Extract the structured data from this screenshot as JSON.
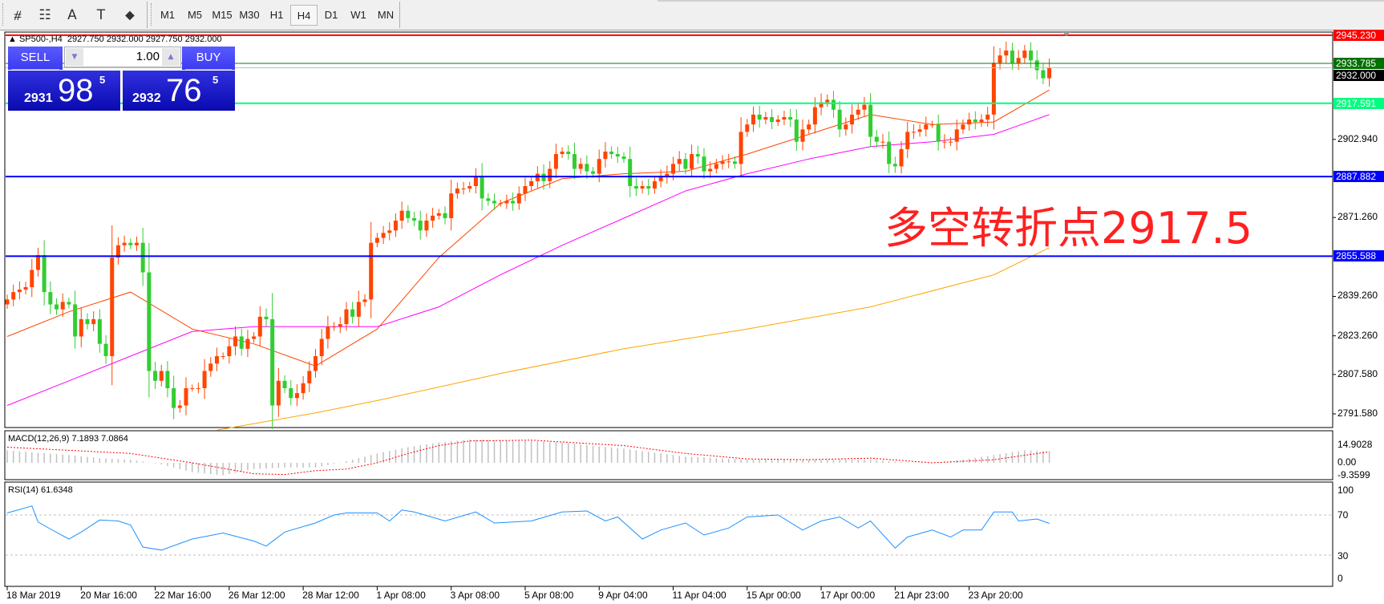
{
  "toolbar": {
    "tools": [
      {
        "name": "equidistant-channel-icon",
        "glyph": "⧣"
      },
      {
        "name": "fibonacci-icon",
        "glyph": "☷"
      },
      {
        "name": "text-icon",
        "glyph": "A"
      },
      {
        "name": "text-label-icon",
        "glyph": "T"
      },
      {
        "name": "arrows-icon",
        "glyph": "⬥"
      }
    ],
    "timeframes": [
      "M1",
      "M5",
      "M15",
      "M30",
      "H1",
      "H4",
      "D1",
      "W1",
      "MN"
    ],
    "selected_timeframe": "H4"
  },
  "chart_header": {
    "symbol": "SP500-,H4",
    "ohlc": "2927.750 2932.000 2927.750 2932.000"
  },
  "trade_panel": {
    "sell_label": "SELL",
    "buy_label": "BUY",
    "lot": "1.00",
    "sell_price": {
      "big_prefix": "2931",
      "main": "98",
      "sup": "5"
    },
    "buy_price": {
      "big_prefix": "2932",
      "main": "76",
      "sup": "5"
    }
  },
  "annotation": "多空转折点2917.5",
  "chart_data": {
    "type": "candlestick",
    "colors": {
      "up": "#ff4500",
      "down": "#32cd32",
      "ma_fast": "#ff4500",
      "ma_mid": "#ff00ff",
      "ma_slow": "#ffa500",
      "macd_hist": "#c0c0c0",
      "macd_signal": "#ff0000",
      "rsi": "#1e90ff"
    },
    "price_ticks": [
      2902.94,
      2871.26,
      2839.26,
      2823.26,
      2807.58,
      2791.58
    ],
    "price_range": [
      2782,
      2949
    ],
    "time_labels": [
      "18 Mar 2019",
      "20 Mar 16:00",
      "22 Mar 16:00",
      "26 Mar 12:00",
      "28 Mar 12:00",
      "1 Apr 08:00",
      "3 Apr 08:00",
      "5 Apr 08:00",
      "9 Apr 04:00",
      "11 Apr 04:00",
      "15 Apr 00:00",
      "17 Apr 00:00",
      "21 Apr 23:00",
      "23 Apr 20:00"
    ],
    "closes": [
      2838,
      2841,
      2842,
      2843,
      2850,
      2856,
      2841,
      2836,
      2834,
      2837,
      2836,
      2823,
      2830,
      2828,
      2830,
      2820,
      2815,
      2855,
      2860,
      2861,
      2860,
      2861,
      2849,
      2809,
      2805,
      2809,
      2802,
      2794,
      2795,
      2802,
      2802,
      2802,
      2809,
      2812,
      2815,
      2815,
      2819,
      2823,
      2818,
      2822,
      2823,
      2831,
      2830,
      2795,
      2805,
      2802,
      2798,
      2800,
      2804,
      2809,
      2815,
      2822,
      2827,
      2827,
      2828,
      2834,
      2831,
      2837,
      2838,
      2861,
      2863,
      2865,
      2866,
      2870,
      2874,
      2871,
      2870,
      2866,
      2870,
      2872,
      2873,
      2871,
      2881,
      2883,
      2883,
      2884,
      2888,
      2879,
      2878,
      2877,
      2877,
      2878,
      2877,
      2881,
      2884,
      2886,
      2889,
      2886,
      2891,
      2897,
      2898,
      2897,
      2891,
      2893,
      2890,
      2889,
      2895,
      2898,
      2897,
      2896,
      2895,
      2884,
      2883,
      2884,
      2883,
      2886,
      2888,
      2889,
      2893,
      2895,
      2891,
      2897,
      2896,
      2890,
      2891,
      2893,
      2894,
      2894,
      2893,
      2906,
      2909,
      2913,
      2911,
      2912,
      2910,
      2911,
      2912,
      2911,
      2902,
      2907,
      2909,
      2916,
      2918,
      2919,
      2915,
      2907,
      2909,
      2913,
      2915,
      2917,
      2904,
      2902,
      2902,
      2893,
      2892,
      2899,
      2906,
      2906,
      2907,
      2909,
      2909,
      2902,
      2902,
      2902,
      2907,
      2909,
      2911,
      2910,
      2911,
      2913,
      2934,
      2937,
      2939,
      2934,
      2936,
      2939,
      2935,
      2931,
      2927.75,
      2932
    ],
    "moving_averages": {
      "fast": [
        [
          0,
          2823
        ],
        [
          10,
          2833
        ],
        [
          20,
          2841
        ],
        [
          30,
          2826
        ],
        [
          40,
          2820
        ],
        [
          50,
          2811
        ],
        [
          60,
          2826
        ],
        [
          70,
          2855
        ],
        [
          80,
          2877
        ],
        [
          90,
          2887
        ],
        [
          100,
          2889
        ],
        [
          110,
          2890
        ],
        [
          120,
          2897
        ],
        [
          130,
          2905
        ],
        [
          140,
          2913
        ],
        [
          150,
          2909
        ],
        [
          160,
          2910
        ],
        [
          169,
          2923
        ]
      ],
      "mid": [
        [
          0,
          2795
        ],
        [
          10,
          2805
        ],
        [
          20,
          2815
        ],
        [
          30,
          2825
        ],
        [
          40,
          2827
        ],
        [
          50,
          2827
        ],
        [
          60,
          2827
        ],
        [
          70,
          2835
        ],
        [
          80,
          2848
        ],
        [
          90,
          2860
        ],
        [
          100,
          2871
        ],
        [
          110,
          2882
        ],
        [
          120,
          2889
        ],
        [
          130,
          2895
        ],
        [
          140,
          2900
        ],
        [
          150,
          2902
        ],
        [
          160,
          2905
        ],
        [
          169,
          2913
        ]
      ],
      "slow": [
        [
          34,
          2785
        ],
        [
          50,
          2792
        ],
        [
          60,
          2797
        ],
        [
          80,
          2808
        ],
        [
          100,
          2818
        ],
        [
          120,
          2826
        ],
        [
          140,
          2835
        ],
        [
          160,
          2848
        ],
        [
          169,
          2859
        ]
      ]
    },
    "levels": [
      {
        "price": "2945.230",
        "color": "#ff0000",
        "label_bg": "#ff0000",
        "label_fg": "#ffffff"
      },
      {
        "price": "2933.785",
        "color": "#008000",
        "label_bg": "#007000",
        "label_fg": "#ffffff"
      },
      {
        "price": "2932.000",
        "color": "#c0c0c0",
        "label_bg": "#000000",
        "label_fg": "#ffffff"
      },
      {
        "price": "2917.591",
        "color": "#00ff7f",
        "label_bg": "#00ff7f",
        "label_fg": "#ffffff"
      },
      {
        "price": "2887.882",
        "color": "#0000ff",
        "label_bg": "#0000ff",
        "label_fg": "#ffffff"
      },
      {
        "price": "2855.588",
        "color": "#0000ff",
        "label_bg": "#0000ff",
        "label_fg": "#ffffff"
      }
    ],
    "macd": {
      "legend": "MACD(12,26,9) 7.1893 7.0864",
      "ticks": [
        "14.9028",
        "0.00",
        "-9.3599"
      ],
      "range": [
        -9.3599,
        14.9028
      ],
      "histogram": [
        [
          0,
          8
        ],
        [
          10,
          5
        ],
        [
          15,
          3
        ],
        [
          20,
          2
        ],
        [
          25,
          -1
        ],
        [
          30,
          -6
        ],
        [
          35,
          -8
        ],
        [
          40,
          -4
        ],
        [
          45,
          -3
        ],
        [
          50,
          -3
        ],
        [
          55,
          1
        ],
        [
          60,
          6
        ],
        [
          65,
          10
        ],
        [
          70,
          13
        ],
        [
          75,
          14.9
        ],
        [
          80,
          14.5
        ],
        [
          85,
          14
        ],
        [
          90,
          13
        ],
        [
          100,
          9
        ],
        [
          110,
          4
        ],
        [
          120,
          2
        ],
        [
          130,
          2
        ],
        [
          140,
          2
        ],
        [
          145,
          0.5
        ],
        [
          150,
          0
        ],
        [
          155,
          2
        ],
        [
          160,
          5
        ],
        [
          165,
          8
        ],
        [
          169,
          7.19
        ]
      ],
      "signal": [
        [
          0,
          10
        ],
        [
          10,
          8
        ],
        [
          20,
          6
        ],
        [
          30,
          0
        ],
        [
          40,
          -7
        ],
        [
          45,
          -7.5
        ],
        [
          50,
          -5
        ],
        [
          55,
          -4
        ],
        [
          60,
          0
        ],
        [
          65,
          6
        ],
        [
          70,
          11
        ],
        [
          75,
          14
        ],
        [
          85,
          14.5
        ],
        [
          100,
          11
        ],
        [
          110,
          6
        ],
        [
          120,
          2.5
        ],
        [
          130,
          2
        ],
        [
          140,
          3
        ],
        [
          150,
          0
        ],
        [
          160,
          2
        ],
        [
          169,
          7.09
        ]
      ]
    },
    "rsi": {
      "legend": "RSI(14) 61.6348",
      "ticks": [
        "100",
        "70",
        "30",
        "0"
      ],
      "levels": [
        70,
        30
      ],
      "values": [
        [
          0,
          72
        ],
        [
          4,
          79
        ],
        [
          5,
          63
        ],
        [
          7,
          56
        ],
        [
          10,
          46
        ],
        [
          12,
          53
        ],
        [
          15,
          65
        ],
        [
          18,
          64
        ],
        [
          20,
          60
        ],
        [
          22,
          38
        ],
        [
          25,
          35
        ],
        [
          30,
          46
        ],
        [
          35,
          52
        ],
        [
          40,
          44
        ],
        [
          42,
          39
        ],
        [
          45,
          53
        ],
        [
          50,
          62
        ],
        [
          53,
          70
        ],
        [
          55,
          72
        ],
        [
          60,
          72
        ],
        [
          62,
          64
        ],
        [
          64,
          75
        ],
        [
          66,
          73
        ],
        [
          71,
          64
        ],
        [
          76,
          73
        ],
        [
          79,
          62
        ],
        [
          85,
          64
        ],
        [
          90,
          73
        ],
        [
          94,
          74
        ],
        [
          97,
          64
        ],
        [
          99,
          68
        ],
        [
          103,
          46
        ],
        [
          106,
          55
        ],
        [
          110,
          62
        ],
        [
          113,
          50
        ],
        [
          117,
          57
        ],
        [
          120,
          68
        ],
        [
          125,
          70
        ],
        [
          129,
          55
        ],
        [
          132,
          64
        ],
        [
          135,
          68
        ],
        [
          138,
          57
        ],
        [
          140,
          64
        ],
        [
          144,
          37
        ],
        [
          146,
          48
        ],
        [
          150,
          55
        ],
        [
          153,
          48
        ],
        [
          155,
          55
        ],
        [
          158,
          55
        ],
        [
          160,
          73
        ],
        [
          163,
          73
        ],
        [
          164,
          64
        ],
        [
          167,
          66
        ],
        [
          169,
          61.63
        ]
      ]
    }
  }
}
